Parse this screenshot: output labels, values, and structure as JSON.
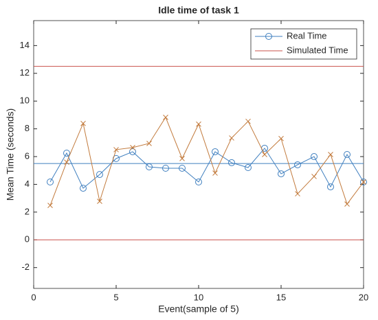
{
  "chart_data": {
    "type": "line",
    "title": "Idle time of task 1",
    "xlabel": "Event(sample of 5)",
    "ylabel": "Mean Time (seconds)",
    "x": [
      1,
      2,
      3,
      4,
      5,
      6,
      7,
      8,
      9,
      10,
      11,
      12,
      13,
      14,
      15,
      16,
      17,
      18,
      19,
      20
    ],
    "series": [
      {
        "color": "#3f7fbf",
        "marker": "circle",
        "values": [
          4.17,
          6.25,
          3.72,
          4.71,
          5.86,
          6.35,
          5.26,
          5.16,
          5.16,
          4.17,
          6.35,
          5.56,
          5.21,
          6.6,
          4.76,
          5.41,
          6.0,
          3.82,
          6.15,
          4.17
        ]
      },
      {
        "color": "#c27a3c",
        "marker": "x",
        "values": [
          2.48,
          5.6,
          8.39,
          2.78,
          6.5,
          6.65,
          6.95,
          8.83,
          5.86,
          8.34,
          4.81,
          7.34,
          8.54,
          6.15,
          7.3,
          3.32,
          4.57,
          6.15,
          2.58,
          4.17
        ]
      }
    ],
    "reference_lines": [
      {
        "value": 5.5,
        "color": "#3f7fbf"
      },
      {
        "value": 12.5,
        "color": "#c9504a"
      },
      {
        "value": 0,
        "color": "#c9504a"
      }
    ],
    "legend": [
      {
        "label": "Real Time",
        "color": "#3f7fbf",
        "marker": "circle"
      },
      {
        "label": "Simulated Time",
        "color": "#c9504a"
      }
    ],
    "legend_position": "upper right",
    "xlim": [
      0,
      20
    ],
    "xticks": [
      0,
      5,
      10,
      15,
      20
    ],
    "ylim": [
      -3.5,
      15.8
    ],
    "yticks": [
      -2,
      0,
      2,
      4,
      6,
      8,
      10,
      12,
      14
    ],
    "grid": false
  }
}
